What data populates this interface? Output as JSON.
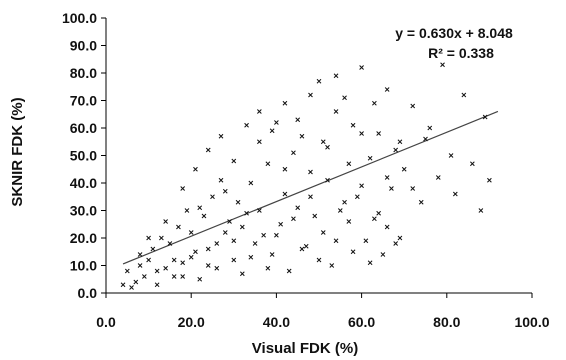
{
  "chart_data": {
    "type": "scatter",
    "xlabel": "Visual FDK (%)",
    "ylabel": "SKNIR FDK (%)",
    "xlim": [
      0,
      100
    ],
    "ylim": [
      0,
      100
    ],
    "x_ticks": [
      "0.0",
      "20.0",
      "40.0",
      "60.0",
      "80.0",
      "100.0"
    ],
    "y_ticks": [
      "0.0",
      "10.0",
      "20.0",
      "30.0",
      "40.0",
      "50.0",
      "60.0",
      "70.0",
      "80.0",
      "90.0",
      "100.0"
    ],
    "grid": false,
    "legend": "none",
    "annotations": {
      "equation": "y = 0.630x + 8.048",
      "r_squared": "R² = 0.338"
    },
    "trendline": {
      "slope": 0.63,
      "intercept": 8.048,
      "x_range": [
        4,
        92
      ]
    },
    "points": [
      [
        4,
        3
      ],
      [
        5,
        8
      ],
      [
        6,
        2
      ],
      [
        7,
        4
      ],
      [
        8,
        10
      ],
      [
        8,
        14
      ],
      [
        9,
        6
      ],
      [
        10,
        12
      ],
      [
        11,
        16
      ],
      [
        12,
        3
      ],
      [
        13,
        20
      ],
      [
        14,
        9
      ],
      [
        15,
        18
      ],
      [
        16,
        6
      ],
      [
        17,
        24
      ],
      [
        18,
        11
      ],
      [
        19,
        30
      ],
      [
        20,
        13
      ],
      [
        21,
        15
      ],
      [
        22,
        5
      ],
      [
        23,
        28
      ],
      [
        24,
        10
      ],
      [
        25,
        35
      ],
      [
        26,
        18
      ],
      [
        27,
        41
      ],
      [
        28,
        22
      ],
      [
        29,
        26
      ],
      [
        30,
        12
      ],
      [
        31,
        33
      ],
      [
        32,
        7
      ],
      [
        33,
        29
      ],
      [
        34,
        40
      ],
      [
        35,
        18
      ],
      [
        36,
        55
      ],
      [
        37,
        21
      ],
      [
        38,
        47
      ],
      [
        39,
        14
      ],
      [
        40,
        62
      ],
      [
        41,
        25
      ],
      [
        42,
        36
      ],
      [
        43,
        8
      ],
      [
        44,
        51
      ],
      [
        45,
        31
      ],
      [
        46,
        57
      ],
      [
        47,
        17
      ],
      [
        48,
        44
      ],
      [
        49,
        28
      ],
      [
        50,
        77
      ],
      [
        51,
        22
      ],
      [
        52,
        53
      ],
      [
        53,
        10
      ],
      [
        54,
        66
      ],
      [
        55,
        30
      ],
      [
        56,
        71
      ],
      [
        57,
        26
      ],
      [
        58,
        61
      ],
      [
        59,
        35
      ],
      [
        60,
        82
      ],
      [
        61,
        19
      ],
      [
        62,
        49
      ],
      [
        63,
        27
      ],
      [
        64,
        58
      ],
      [
        65,
        14
      ],
      [
        66,
        74
      ],
      [
        67,
        38
      ],
      [
        68,
        52
      ],
      [
        69,
        20
      ],
      [
        70,
        45
      ],
      [
        72,
        68
      ],
      [
        74,
        33
      ],
      [
        76,
        60
      ],
      [
        78,
        42
      ],
      [
        79,
        83
      ],
      [
        81,
        50
      ],
      [
        82,
        36
      ],
      [
        84,
        72
      ],
      [
        86,
        47
      ],
      [
        88,
        30
      ],
      [
        89,
        64
      ],
      [
        90,
        41
      ],
      [
        10,
        20
      ],
      [
        12,
        8
      ],
      [
        14,
        26
      ],
      [
        16,
        12
      ],
      [
        18,
        6
      ],
      [
        20,
        22
      ],
      [
        22,
        31
      ],
      [
        24,
        16
      ],
      [
        26,
        9
      ],
      [
        28,
        37
      ],
      [
        30,
        19
      ],
      [
        32,
        24
      ],
      [
        34,
        13
      ],
      [
        36,
        30
      ],
      [
        38,
        9
      ],
      [
        40,
        21
      ],
      [
        42,
        45
      ],
      [
        44,
        27
      ],
      [
        46,
        16
      ],
      [
        48,
        35
      ],
      [
        50,
        12
      ],
      [
        52,
        41
      ],
      [
        54,
        19
      ],
      [
        56,
        33
      ],
      [
        58,
        15
      ],
      [
        60,
        39
      ],
      [
        62,
        11
      ],
      [
        64,
        29
      ],
      [
        66,
        24
      ],
      [
        68,
        18
      ],
      [
        18,
        38
      ],
      [
        21,
        45
      ],
      [
        24,
        52
      ],
      [
        27,
        57
      ],
      [
        30,
        48
      ],
      [
        33,
        61
      ],
      [
        36,
        66
      ],
      [
        39,
        59
      ],
      [
        42,
        69
      ],
      [
        45,
        63
      ],
      [
        48,
        72
      ],
      [
        51,
        55
      ],
      [
        54,
        79
      ],
      [
        57,
        47
      ],
      [
        60,
        58
      ],
      [
        63,
        69
      ],
      [
        66,
        42
      ],
      [
        69,
        55
      ],
      [
        72,
        38
      ],
      [
        75,
        56
      ]
    ]
  }
}
